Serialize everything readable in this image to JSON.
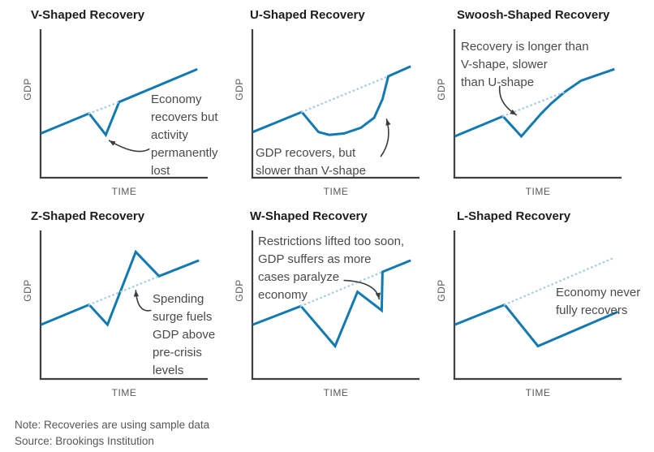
{
  "theme": {
    "line_color": "#137ab1",
    "trend_color": "#a6cde1",
    "axis_color": "#3f3f3f",
    "arrow_color": "#3c3c3c",
    "title_color": "#1d1d1f",
    "annotation_color": "#4a4a4a",
    "label_color": "#5a5a5c"
  },
  "footer": {
    "note": "Note: Recoveries are using sample data",
    "source": "Source: Brookings Institution"
  },
  "chart_data": [
    {
      "id": "v-shaped",
      "type": "line",
      "title": "V-Shaped Recovery",
      "xlabel": "TIME",
      "ylabel": "GDP",
      "x_range": [
        0,
        100
      ],
      "y_range": [
        0,
        100
      ],
      "grid": false,
      "legend": "none",
      "series": [
        {
          "name": "GDP",
          "style": "solid",
          "points": [
            [
              0,
              31
            ],
            [
              29,
              45
            ],
            [
              39,
              30
            ],
            [
              47,
              53
            ],
            [
              94,
              76
            ]
          ]
        },
        {
          "name": "Pre-crisis trend",
          "style": "dotted",
          "points": [
            [
              29,
              45
            ],
            [
              47,
              53
            ]
          ]
        }
      ],
      "annotation": {
        "text": "Economy\nrecovers but\nactivity\npermanently\nlost",
        "arrow": {
          "from": [
            65,
            20
          ],
          "via": [
            57,
            15
          ],
          "to": [
            41,
            26
          ]
        }
      }
    },
    {
      "id": "u-shaped",
      "type": "line",
      "title": "U-Shaped Recovery",
      "xlabel": "TIME",
      "ylabel": "GDP",
      "x_range": [
        0,
        100
      ],
      "y_range": [
        0,
        100
      ],
      "grid": false,
      "legend": "none",
      "series": [
        {
          "name": "GDP",
          "style": "solid",
          "points": [
            [
              0,
              32
            ],
            [
              29.5,
              46
            ],
            [
              39.5,
              32
            ],
            [
              46,
              30
            ],
            [
              55,
              31
            ],
            [
              65,
              35
            ],
            [
              73,
              42
            ],
            [
              78,
              55
            ],
            [
              81.5,
              71
            ],
            [
              95,
              78
            ]
          ]
        },
        {
          "name": "Pre-crisis trend",
          "style": "dotted",
          "points": [
            [
              29.5,
              46
            ],
            [
              81.5,
              71
            ]
          ]
        }
      ],
      "annotation": {
        "text": "GDP recovers, but\nslower than V-shape",
        "arrow": {
          "from": [
            77,
            15
          ],
          "via": [
            84,
            26
          ],
          "to": [
            80.5,
            41
          ]
        }
      }
    },
    {
      "id": "swoosh-shaped",
      "type": "line",
      "title": "Swoosh-Shaped Recovery",
      "xlabel": "TIME",
      "ylabel": "GDP",
      "x_range": [
        0,
        100
      ],
      "y_range": [
        0,
        100
      ],
      "grid": false,
      "legend": "none",
      "series": [
        {
          "name": "GDP",
          "style": "solid",
          "points": [
            [
              0,
              29
            ],
            [
              29,
              43
            ],
            [
              40,
              29
            ],
            [
              46,
              37
            ],
            [
              52,
              45
            ],
            [
              58,
              52
            ],
            [
              66,
              60
            ],
            [
              76,
              68
            ],
            [
              96,
              76
            ]
          ]
        },
        {
          "name": "Pre-crisis trend",
          "style": "dotted",
          "points": [
            [
              29,
              43
            ],
            [
              66,
              60
            ]
          ]
        }
      ],
      "annotation": {
        "text": "Recovery is longer than\nV-shape, slower\nthan U-shape",
        "arrow": {
          "from": [
            27,
            64
          ],
          "via": [
            26,
            52
          ],
          "to": [
            37,
            44
          ]
        }
      }
    },
    {
      "id": "z-shaped",
      "type": "line",
      "title": "Z-Shaped Recovery",
      "xlabel": "TIME",
      "ylabel": "GDP",
      "x_range": [
        0,
        100
      ],
      "y_range": [
        0,
        100
      ],
      "grid": false,
      "legend": "none",
      "series": [
        {
          "name": "GDP",
          "style": "solid",
          "points": [
            [
              0,
              38
            ],
            [
              29,
              52
            ],
            [
              40,
              38
            ],
            [
              57,
              89
            ],
            [
              71,
              72
            ],
            [
              95,
              83
            ]
          ]
        },
        {
          "name": "Pre-crisis trend",
          "style": "dotted",
          "points": [
            [
              29,
              52
            ],
            [
              71,
              72
            ]
          ]
        }
      ],
      "annotation": {
        "text": "Spending\nsurge fuels\nGDP above\npre-crisis\nlevels",
        "arrow": {
          "from": [
            66,
            48
          ],
          "via": [
            58,
            46
          ],
          "to": [
            57,
            62
          ]
        }
      }
    },
    {
      "id": "w-shaped",
      "type": "line",
      "title": "W-Shaped Recovery",
      "xlabel": "TIME",
      "ylabel": "GDP",
      "x_range": [
        0,
        100
      ],
      "y_range": [
        0,
        100
      ],
      "grid": false,
      "legend": "none",
      "series": [
        {
          "name": "GDP",
          "style": "solid",
          "points": [
            [
              0,
              38
            ],
            [
              29,
              51
            ],
            [
              49.5,
              23
            ],
            [
              63,
              61
            ],
            [
              77.5,
              48
            ],
            [
              78,
              75
            ],
            [
              95,
              83
            ]
          ]
        },
        {
          "name": "Pre-crisis trend",
          "style": "dotted",
          "points": [
            [
              29,
              51
            ],
            [
              78,
              75
            ]
          ]
        }
      ],
      "annotation": {
        "text": "Restrictions lifted too soon,\nGDP suffers as more\ncases paralyze\neconomy",
        "arrow": {
          "from": [
            55,
            69
          ],
          "via": [
            74,
            68
          ],
          "to": [
            76,
            56
          ]
        }
      }
    },
    {
      "id": "l-shaped",
      "type": "line",
      "title": "L-Shaped Recovery",
      "xlabel": "TIME",
      "ylabel": "GDP",
      "x_range": [
        0,
        100
      ],
      "y_range": [
        0,
        100
      ],
      "grid": false,
      "legend": "none",
      "series": [
        {
          "name": "GDP",
          "style": "solid",
          "points": [
            [
              0,
              38
            ],
            [
              30,
              52
            ],
            [
              50,
              23
            ],
            [
              98,
              47
            ]
          ]
        },
        {
          "name": "Pre-crisis trend",
          "style": "dotted",
          "points": [
            [
              30,
              52
            ],
            [
              96,
              85
            ]
          ]
        }
      ],
      "annotation": {
        "text": "Economy never\nfully recovers",
        "arrow": null
      }
    }
  ]
}
